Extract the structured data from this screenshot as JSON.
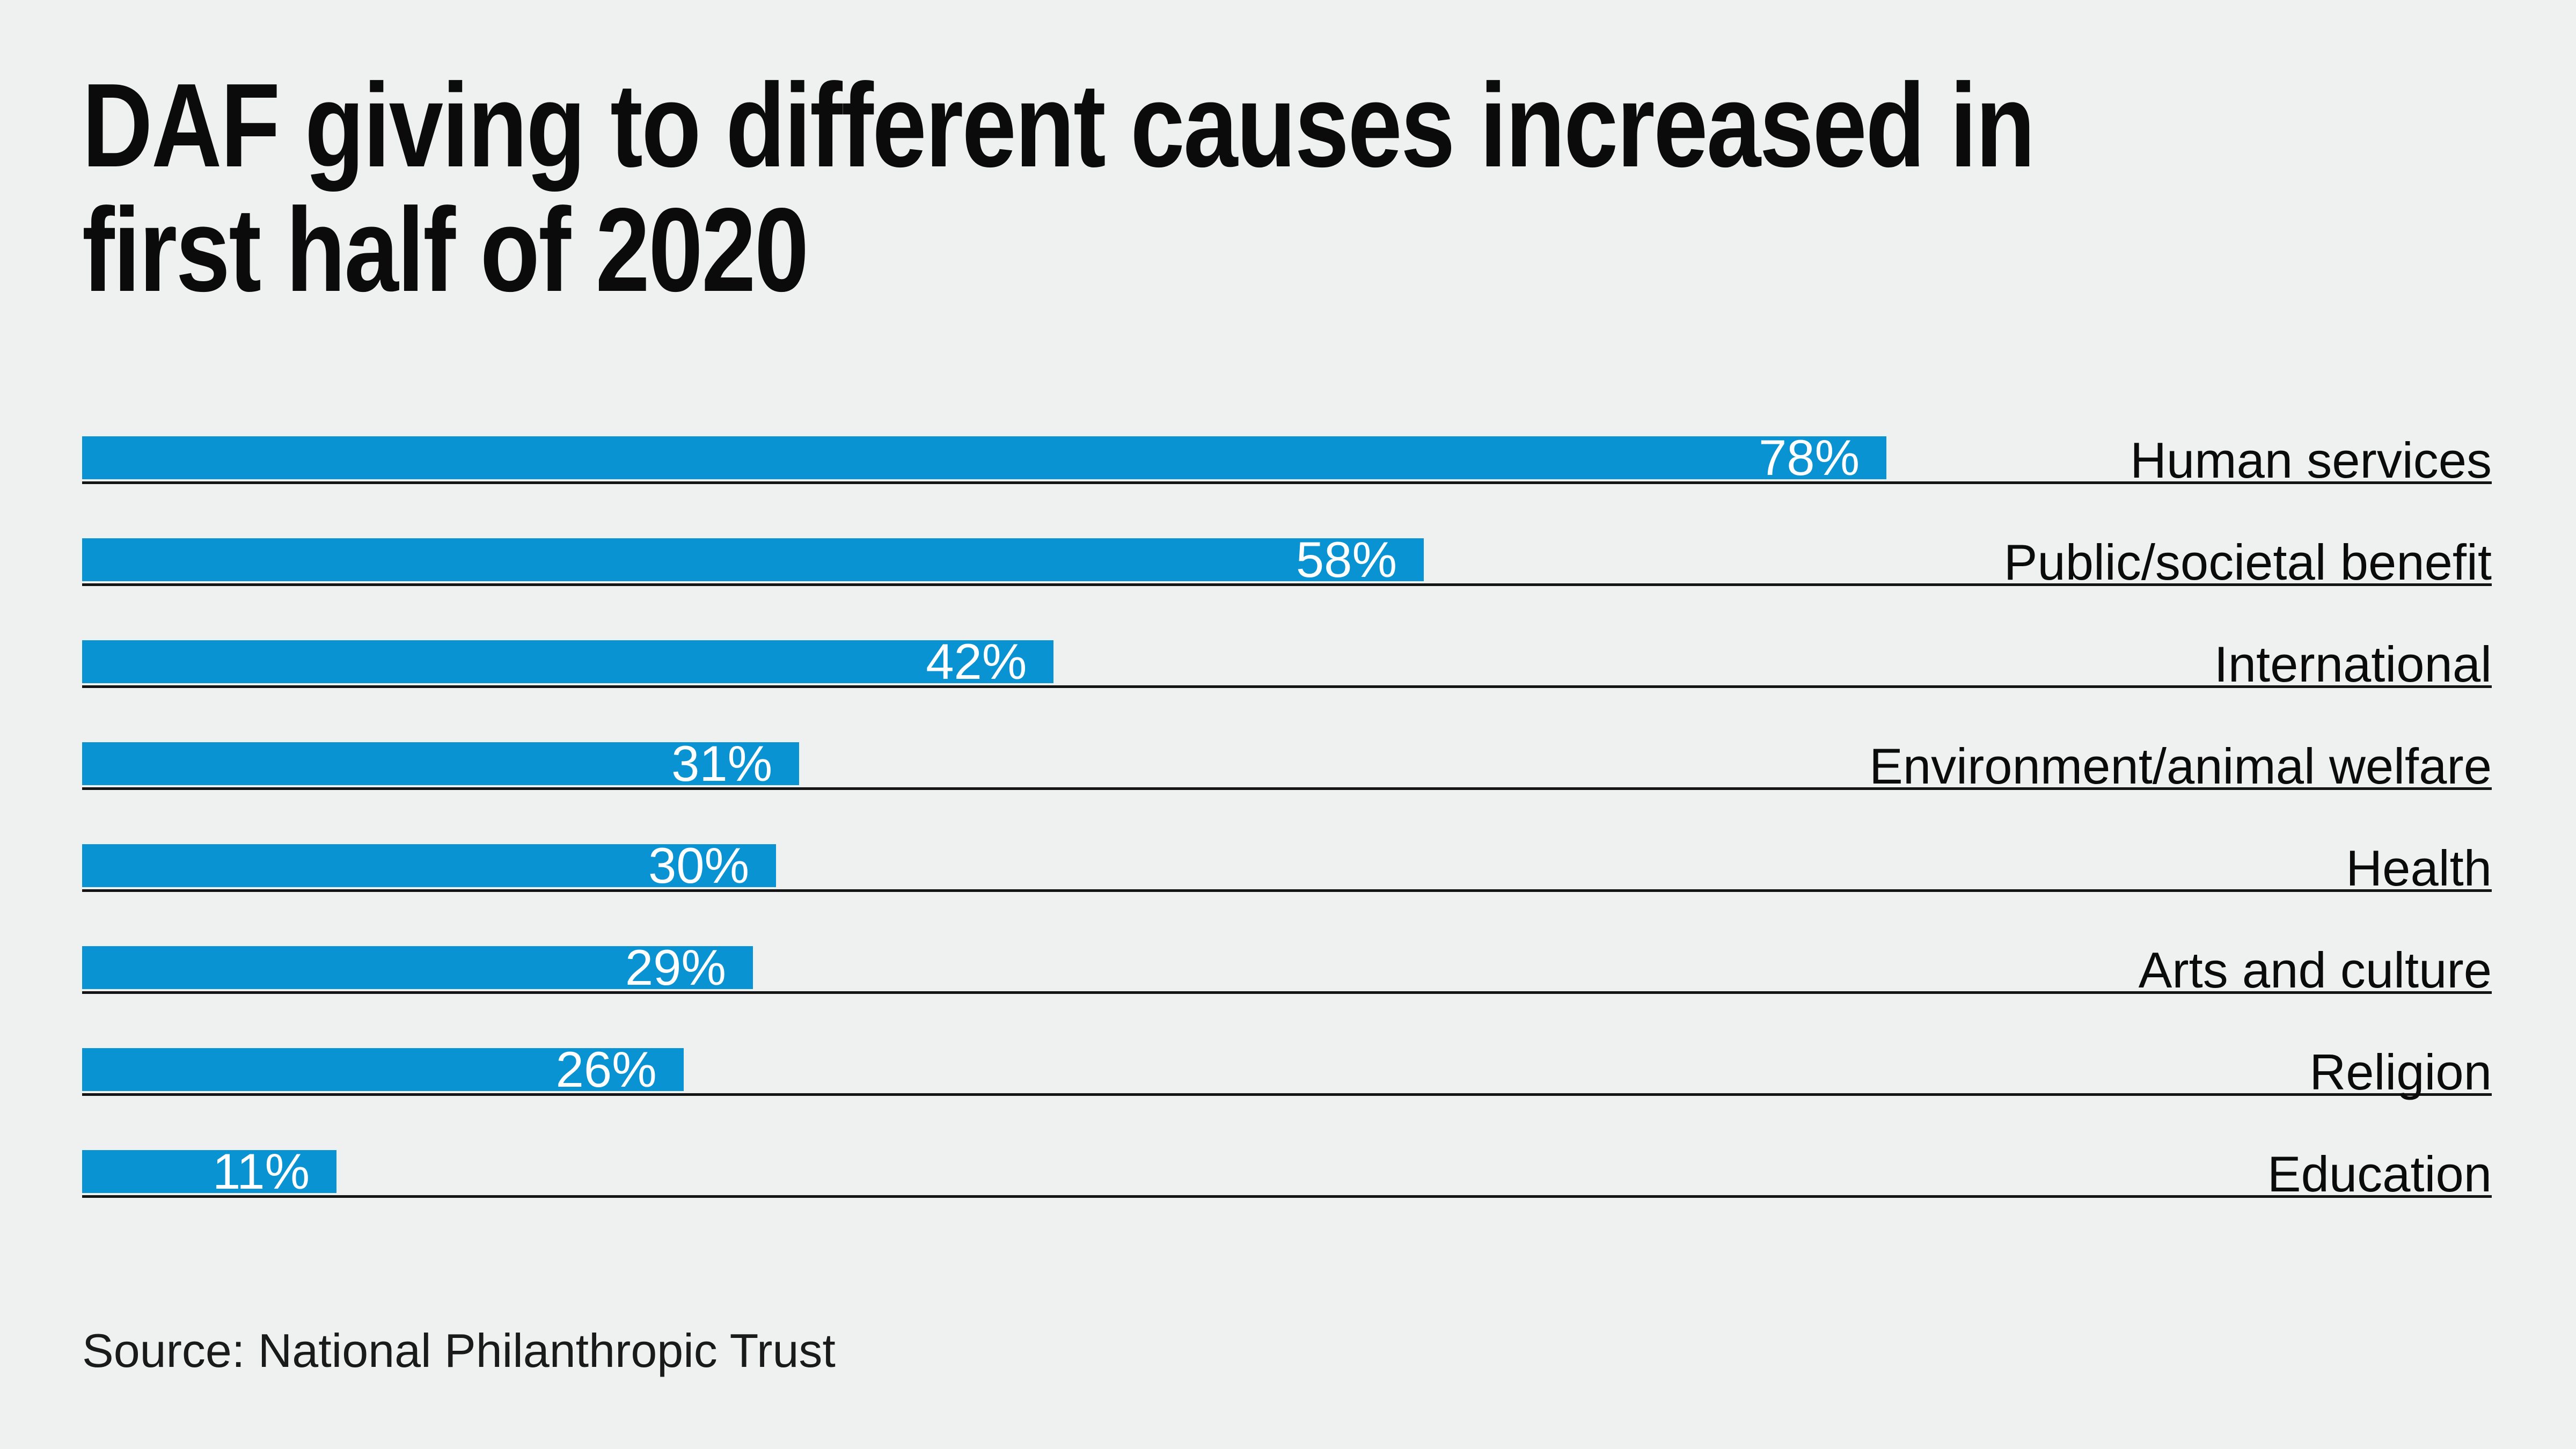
{
  "colors": {
    "background": "#eff0f0",
    "bar": "#0993d2",
    "rule": "#141414",
    "text": "#0b0b0b",
    "value_text": "#ffffff"
  },
  "header": {
    "title_lines": [
      "DAF giving to different causes increased in",
      "first half of 2020"
    ]
  },
  "chart_data": {
    "type": "bar",
    "orientation": "horizontal",
    "title": "DAF giving to different causes increased in first half of 2020",
    "categories": [
      "Human services",
      "Public/societal benefit",
      "International",
      "Environment/animal welfare",
      "Health",
      "Arts and culture",
      "Religion",
      "Education"
    ],
    "values": [
      78,
      58,
      42,
      31,
      30,
      29,
      26,
      11
    ],
    "value_labels": [
      "78%",
      "58%",
      "42%",
      "31%",
      "30%",
      "29%",
      "26%",
      "11%"
    ],
    "unit": "%",
    "xlim": [
      0,
      100
    ],
    "grid": "off",
    "legend": "none",
    "value_label_position": "inside-end",
    "category_label_position": "right"
  },
  "footer": {
    "source": "Source: National Philanthropic Trust"
  }
}
